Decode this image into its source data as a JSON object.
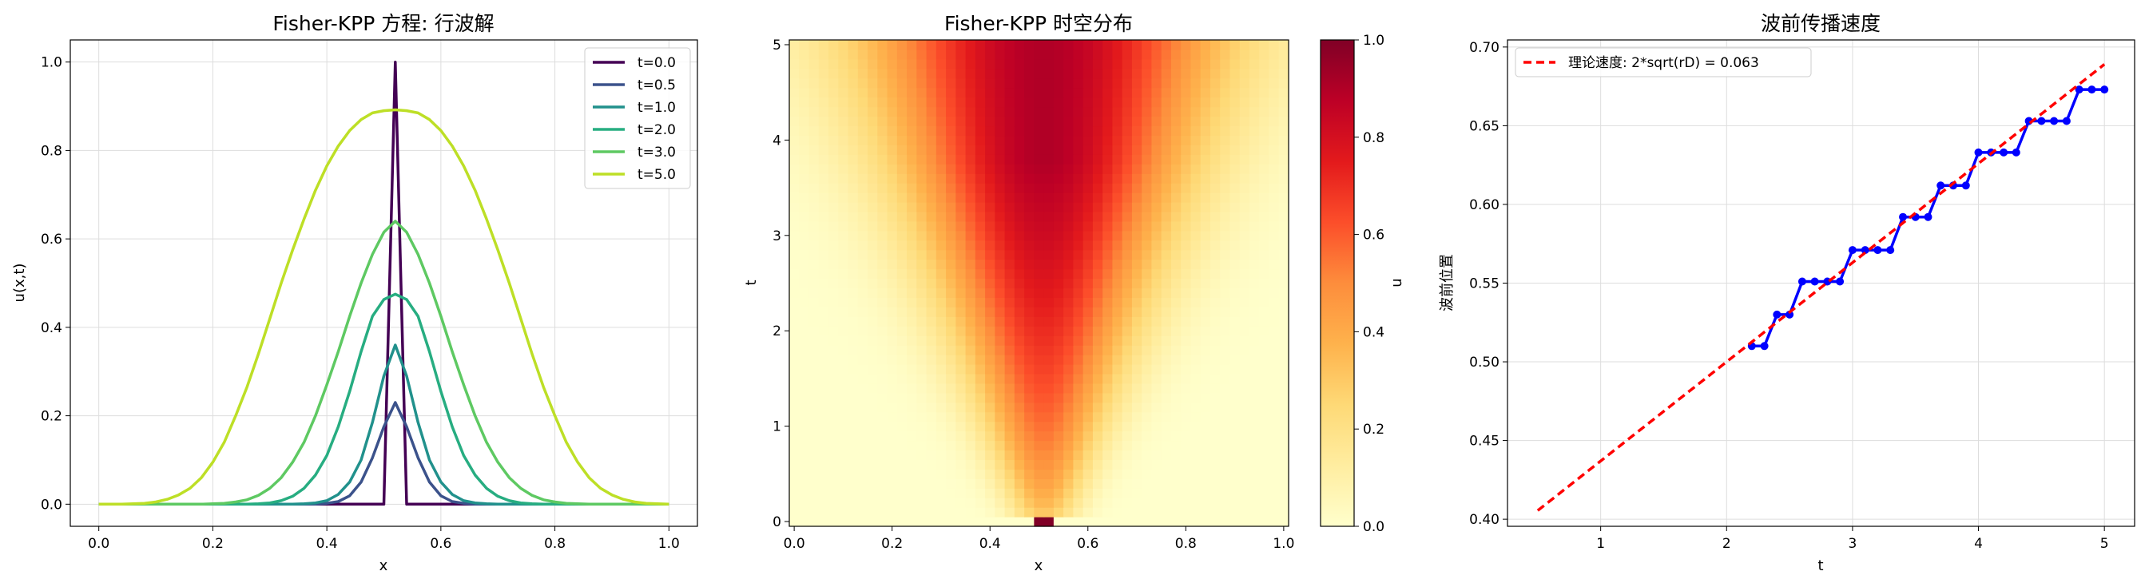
{
  "colors": {
    "palette": [
      "#440154",
      "#3b528b",
      "#21918c",
      "#27ad81",
      "#5ec962",
      "#bddf26"
    ],
    "front": "#0000ff",
    "theory": "#ff0000"
  },
  "chart_data": [
    {
      "type": "line",
      "title": "Fisher-KPP 方程: 行波解",
      "xlabel": "x",
      "ylabel": "u(x,t)",
      "xlim": [
        -0.05,
        1.05
      ],
      "ylim": [
        -0.05,
        1.05
      ],
      "xticks": [
        "0.0",
        "0.2",
        "0.4",
        "0.6",
        "0.8",
        "1.0"
      ],
      "yticks": [
        "0.0",
        "0.2",
        "0.4",
        "0.6",
        "0.8",
        "1.0"
      ],
      "grid": true,
      "legend_position": "top-right",
      "x": [
        0.0,
        0.02,
        0.04,
        0.06,
        0.08,
        0.1,
        0.12,
        0.14,
        0.16,
        0.18,
        0.2,
        0.22,
        0.24,
        0.26,
        0.28,
        0.3,
        0.32,
        0.34,
        0.36,
        0.38,
        0.4,
        0.42,
        0.44,
        0.46,
        0.48,
        0.5,
        0.52,
        0.54,
        0.56,
        0.58,
        0.6,
        0.62,
        0.64,
        0.66,
        0.68,
        0.7,
        0.72,
        0.74,
        0.76,
        0.78,
        0.8,
        0.82,
        0.84,
        0.86,
        0.88,
        0.9,
        0.92,
        0.94,
        0.96,
        0.98,
        1.0
      ],
      "series": [
        {
          "name": "t=0.0",
          "values": [
            0,
            0,
            0,
            0,
            0,
            0,
            0,
            0,
            0,
            0,
            0,
            0,
            0,
            0,
            0,
            0,
            0,
            0,
            0,
            0,
            0,
            0,
            0,
            0,
            0,
            0,
            1.0,
            0,
            0,
            0,
            0,
            0,
            0,
            0,
            0,
            0,
            0,
            0,
            0,
            0,
            0,
            0,
            0,
            0,
            0,
            0,
            0,
            0,
            0,
            0,
            0
          ]
        },
        {
          "name": "t=0.5",
          "values": [
            0,
            0,
            0,
            0,
            0,
            0,
            0,
            0,
            0,
            0,
            0,
            0,
            0,
            0,
            0,
            0,
            0,
            0,
            0,
            0,
            0.002,
            0.006,
            0.019,
            0.05,
            0.105,
            0.175,
            0.23,
            0.175,
            0.105,
            0.05,
            0.019,
            0.006,
            0.002,
            0,
            0,
            0,
            0,
            0,
            0,
            0,
            0,
            0,
            0,
            0,
            0,
            0,
            0,
            0,
            0,
            0,
            0
          ]
        },
        {
          "name": "t=1.0",
          "values": [
            0,
            0,
            0,
            0,
            0,
            0,
            0,
            0,
            0,
            0,
            0,
            0,
            0,
            0,
            0,
            0,
            0,
            0,
            0.001,
            0.003,
            0.008,
            0.022,
            0.05,
            0.1,
            0.185,
            0.29,
            0.36,
            0.29,
            0.185,
            0.1,
            0.05,
            0.022,
            0.008,
            0.003,
            0.001,
            0,
            0,
            0,
            0,
            0,
            0,
            0,
            0,
            0,
            0,
            0,
            0,
            0,
            0,
            0,
            0
          ]
        },
        {
          "name": "t=2.0",
          "values": [
            0,
            0,
            0,
            0,
            0,
            0,
            0,
            0,
            0,
            0,
            0,
            0,
            0,
            0,
            0.001,
            0.003,
            0.008,
            0.018,
            0.036,
            0.066,
            0.11,
            0.175,
            0.255,
            0.345,
            0.425,
            0.463,
            0.475,
            0.463,
            0.425,
            0.345,
            0.255,
            0.175,
            0.11,
            0.066,
            0.036,
            0.018,
            0.008,
            0.003,
            0.001,
            0,
            0,
            0,
            0,
            0,
            0,
            0,
            0,
            0,
            0,
            0,
            0
          ]
        },
        {
          "name": "t=3.0",
          "values": [
            0,
            0,
            0,
            0,
            0,
            0,
            0,
            0,
            0,
            0,
            0.001,
            0.002,
            0.005,
            0.01,
            0.02,
            0.036,
            0.06,
            0.095,
            0.14,
            0.2,
            0.27,
            0.345,
            0.425,
            0.5,
            0.565,
            0.615,
            0.64,
            0.615,
            0.565,
            0.5,
            0.425,
            0.345,
            0.27,
            0.2,
            0.14,
            0.095,
            0.06,
            0.036,
            0.02,
            0.01,
            0.005,
            0.002,
            0.001,
            0,
            0,
            0,
            0,
            0,
            0,
            0,
            0
          ]
        },
        {
          "name": "t=5.0",
          "values": [
            0,
            0,
            0,
            0.001,
            0.002,
            0.005,
            0.011,
            0.021,
            0.036,
            0.06,
            0.095,
            0.14,
            0.2,
            0.265,
            0.34,
            0.42,
            0.5,
            0.575,
            0.645,
            0.71,
            0.765,
            0.81,
            0.845,
            0.87,
            0.885,
            0.89,
            0.892,
            0.89,
            0.885,
            0.87,
            0.845,
            0.81,
            0.765,
            0.71,
            0.645,
            0.575,
            0.5,
            0.42,
            0.34,
            0.265,
            0.2,
            0.14,
            0.095,
            0.06,
            0.036,
            0.021,
            0.011,
            0.005,
            0.002,
            0.001,
            0
          ]
        }
      ]
    },
    {
      "type": "heatmap",
      "title": "Fisher-KPP 时空分布",
      "xlabel": "x",
      "ylabel": "t",
      "xlim": [
        0,
        1
      ],
      "ylim": [
        0,
        5
      ],
      "xticks": [
        "0.0",
        "0.2",
        "0.4",
        "0.6",
        "0.8",
        "1.0"
      ],
      "yticks": [
        "0",
        "1",
        "2",
        "3",
        "4",
        "5"
      ],
      "colormap": "YlOrRd",
      "colorbar": {
        "label": "u",
        "range": [
          0,
          1
        ],
        "ticks": [
          "0.0",
          "0.2",
          "0.4",
          "0.6",
          "0.8",
          "1.0"
        ]
      },
      "grid": false
    },
    {
      "type": "line",
      "title": "波前传播速度",
      "xlabel": "t",
      "ylabel": "波前位置",
      "xlim": [
        0.26,
        5.24
      ],
      "ylim": [
        0.3955,
        0.7045
      ],
      "xticks": [
        "1",
        "2",
        "3",
        "4",
        "5"
      ],
      "yticks": [
        "0.40",
        "0.45",
        "0.50",
        "0.55",
        "0.60",
        "0.65",
        "0.70"
      ],
      "grid": true,
      "legend_position": "top-left",
      "series": [
        {
          "name": "",
          "style": "solid-markers",
          "x": [
            2.2,
            2.3,
            2.4,
            2.5,
            2.6,
            2.7,
            2.8,
            2.9,
            3.0,
            3.1,
            3.2,
            3.3,
            3.4,
            3.5,
            3.6,
            3.7,
            3.8,
            3.9,
            4.0,
            4.1,
            4.2,
            4.3,
            4.4,
            4.5,
            4.6,
            4.7,
            4.8,
            4.9,
            5.0
          ],
          "values": [
            0.51,
            0.51,
            0.53,
            0.53,
            0.551,
            0.551,
            0.551,
            0.551,
            0.571,
            0.571,
            0.571,
            0.571,
            0.592,
            0.592,
            0.592,
            0.612,
            0.612,
            0.612,
            0.633,
            0.633,
            0.633,
            0.633,
            0.653,
            0.653,
            0.653,
            0.653,
            0.673,
            0.673,
            0.673
          ]
        },
        {
          "name": "理论速度: 2*sqrt(rD) = 0.063",
          "style": "dashed",
          "x": [
            0.5,
            5.0
          ],
          "values": [
            0.4055,
            0.689
          ]
        }
      ]
    }
  ]
}
